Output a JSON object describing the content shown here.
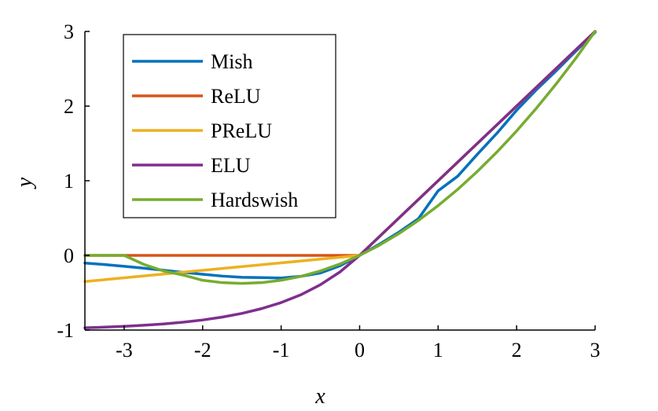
{
  "chart_data": {
    "type": "line",
    "xlabel": "x",
    "ylabel": "y",
    "xlim": [
      -3.5,
      3
    ],
    "ylim": [
      -1,
      3
    ],
    "xticks": [
      -3,
      -2,
      -1,
      0,
      1,
      2,
      3
    ],
    "yticks": [
      -1,
      0,
      1,
      2,
      3
    ],
    "xtick_labels": [
      "-3",
      "-2",
      "-1",
      "0",
      "1",
      "2",
      "3"
    ],
    "ytick_labels": [
      "-1",
      "0",
      "1",
      "2",
      "3"
    ],
    "grid": false,
    "legend_position": "top-left",
    "x": [
      -3.5,
      -3.25,
      -3,
      -2.75,
      -2.5,
      -2.25,
      -2,
      -1.75,
      -1.5,
      -1.25,
      -1,
      -0.75,
      -0.5,
      -0.25,
      0,
      0.25,
      0.5,
      0.75,
      1,
      1.25,
      1.5,
      1.75,
      2,
      2.25,
      2.5,
      2.75,
      3
    ],
    "series": [
      {
        "name": "Mish",
        "color": "#0072BD",
        "values": [
          -0.103,
          -0.122,
          -0.146,
          -0.171,
          -0.199,
          -0.227,
          -0.253,
          -0.277,
          -0.293,
          -0.298,
          -0.303,
          -0.28,
          -0.236,
          -0.139,
          0,
          0.149,
          0.311,
          0.493,
          0.865,
          1.061,
          1.355,
          1.637,
          1.944,
          2.217,
          2.469,
          2.731,
          2.987
        ]
      },
      {
        "name": "ReLU",
        "color": "#D95319",
        "values": [
          0,
          0,
          0,
          0,
          0,
          0,
          0,
          0,
          0,
          0,
          0,
          0,
          0,
          0,
          0,
          0.25,
          0.5,
          0.75,
          1,
          1.25,
          1.5,
          1.75,
          2,
          2.25,
          2.5,
          2.75,
          3
        ]
      },
      {
        "name": "PReLU",
        "color": "#EDB120",
        "values": [
          -0.35,
          -0.325,
          -0.3,
          -0.275,
          -0.25,
          -0.225,
          -0.2,
          -0.175,
          -0.15,
          -0.125,
          -0.1,
          -0.075,
          -0.05,
          -0.025,
          0,
          0.25,
          0.5,
          0.75,
          1,
          1.25,
          1.5,
          1.75,
          2,
          2.25,
          2.5,
          2.75,
          3
        ]
      },
      {
        "name": "ELU",
        "color": "#7E2F8E",
        "values": [
          -0.97,
          -0.961,
          -0.95,
          -0.936,
          -0.918,
          -0.895,
          -0.865,
          -0.826,
          -0.777,
          -0.713,
          -0.632,
          -0.528,
          -0.393,
          -0.221,
          0,
          0.25,
          0.5,
          0.75,
          1,
          1.25,
          1.5,
          1.75,
          2,
          2.25,
          2.5,
          2.75,
          3
        ]
      },
      {
        "name": "Hardswish",
        "color": "#77AC30",
        "values": [
          0,
          0,
          0,
          -0.12,
          -0.208,
          -0.263,
          -0.333,
          -0.365,
          -0.375,
          -0.365,
          -0.333,
          -0.281,
          -0.208,
          -0.115,
          0,
          0.135,
          0.292,
          0.469,
          0.667,
          0.885,
          1.125,
          1.385,
          1.667,
          1.969,
          2.292,
          2.635,
          3
        ]
      }
    ]
  }
}
